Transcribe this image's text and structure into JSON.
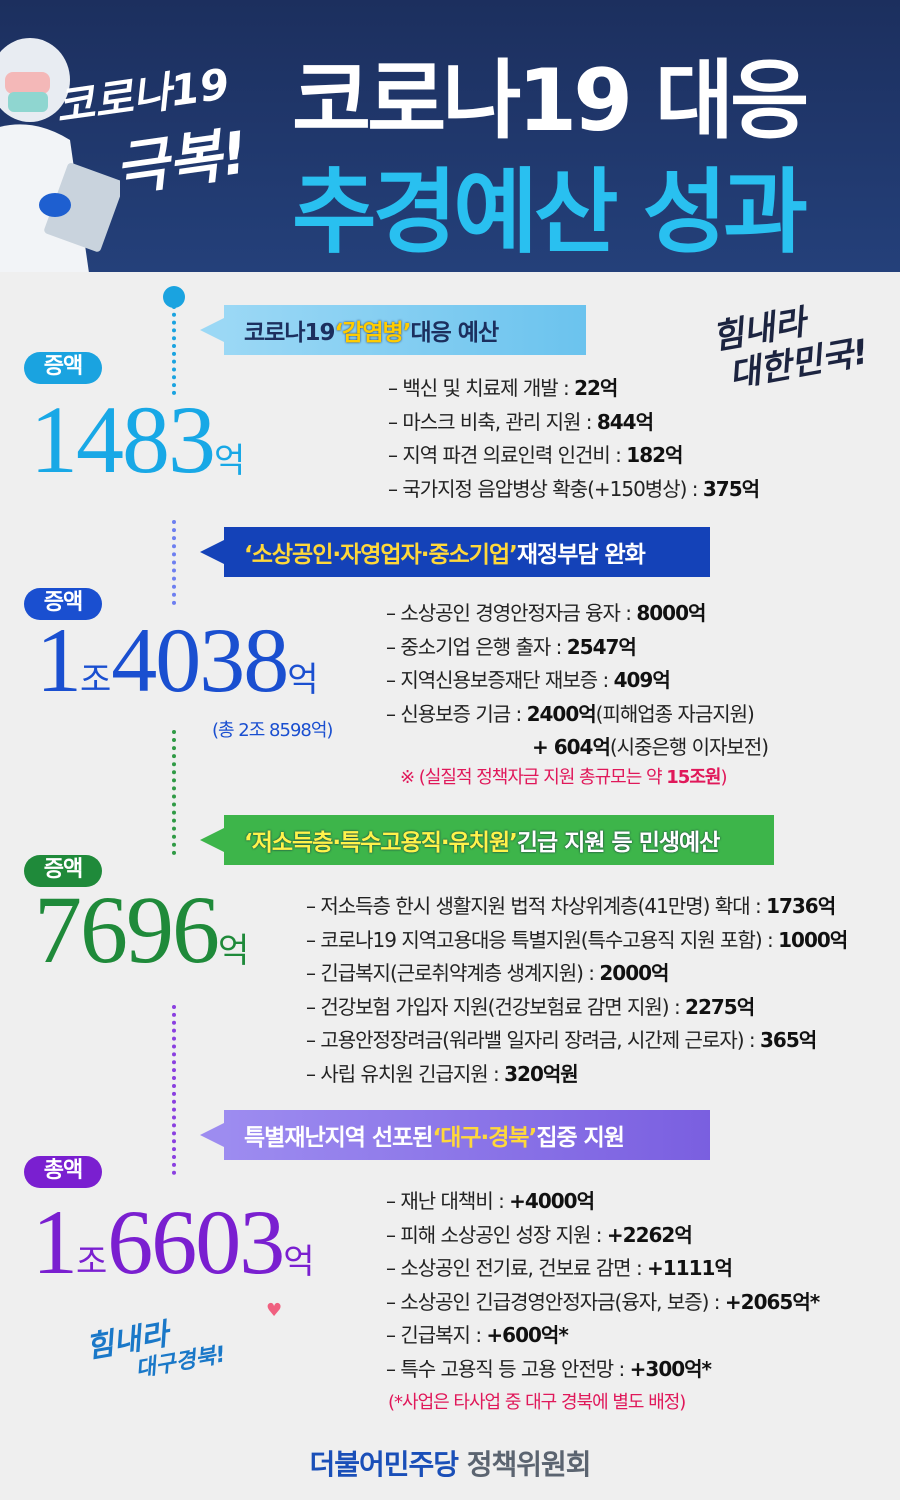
{
  "header": {
    "slogan_line1": "코로나19",
    "slogan_line2": "극복!",
    "title_line1": "코로나19 대응",
    "title_line2": "추경예산 성과"
  },
  "colors": {
    "header_bg": "#1c2f5e",
    "title_accent": "#29c0f0",
    "section1": "#1aa3e0",
    "section2": "#1a4fd0",
    "section3": "#1f8a3a",
    "section4": "#7a1fd0",
    "highlight": "#ffd83a",
    "note": "#e0185a"
  },
  "cheer1": {
    "line1": "힘내라",
    "line2": "대한민국!"
  },
  "cheer2": {
    "line1": "힘내라",
    "line2": "대구경북!"
  },
  "sections": [
    {
      "banner_pre": "코로나19 ",
      "banner_hl": "‘감염병’",
      "banner_post": " 대응 예산",
      "badge": "증액",
      "amount": "1483",
      "unit": "억",
      "items": [
        {
          "label": "– 백신 및 치료제 개발 : ",
          "value": "22억"
        },
        {
          "label": "– 마스크 비축, 관리 지원 : ",
          "value": "844억"
        },
        {
          "label": "– 지역 파견 의료인력 인건비 : ",
          "value": "182억"
        },
        {
          "label": "– 국가지정 음압병상 확충(+150병상) : ",
          "value": "375억"
        }
      ]
    },
    {
      "banner_pre": "",
      "banner_hl": "‘소상공인·자영업자·중소기업’",
      "banner_post": " 재정부담 완화",
      "badge": "증액",
      "amount_jo": "1",
      "jo": "조",
      "amount": "4038",
      "unit": "억",
      "total": "(총 2조 8598억)",
      "items": [
        {
          "label": "– 소상공인 경영안정자금 융자 : ",
          "value": "8000억"
        },
        {
          "label": "– 중소기업 은행 출자 : ",
          "value": "2547억"
        },
        {
          "label": "– 지역신용보증재단 재보증 : ",
          "value": "409억"
        },
        {
          "label": "– 신용보증 기금 : ",
          "value": "2400억",
          "extra": "(피해업종 자금지원)"
        },
        {
          "label": "",
          "value": "+ 604억",
          "extra": "(시중은행 이자보전)"
        }
      ],
      "note_pre": "※ (실질적 정책자금 지원 총규모는 약 ",
      "note_bold": "15조원",
      "note_post": ")"
    },
    {
      "banner_pre": "",
      "banner_hl": "‘저소득층·특수고용직·유치원’",
      "banner_post": " 긴급 지원 등 민생예산",
      "badge": "증액",
      "amount": "7696",
      "unit": "억",
      "items": [
        {
          "label": "– 저소득층 한시 생활지원 법적 차상위계층(41만명) 확대 : ",
          "value": "1736억"
        },
        {
          "label": "– 코로나19 지역고용대응 특별지원(특수고용직 지원 포함) : ",
          "value": "1000억"
        },
        {
          "label": "– 긴급복지(근로취약계층 생계지원) : ",
          "value": "2000억"
        },
        {
          "label": "– 건강보험 가입자 지원(건강보험료 감면 지원) : ",
          "value": "2275억"
        },
        {
          "label": "– 고용안정장려금(워라밸 일자리 장려금, 시간제 근로자) : ",
          "value": "365억"
        },
        {
          "label": "– 사립 유치원 긴급지원 : ",
          "value": "320억원"
        }
      ]
    },
    {
      "banner_pre": "특별재난지역 선포된 ",
      "banner_hl": "‘대구·경북’",
      "banner_post": " 집중 지원",
      "badge": "총액",
      "amount_jo": "1",
      "jo": "조",
      "amount": "6603",
      "unit": "억",
      "items": [
        {
          "label": "– 재난 대책비 : ",
          "value": "+4000억"
        },
        {
          "label": "– 피해 소상공인 성장 지원 : ",
          "value": "+2262억"
        },
        {
          "label": "– 소상공인 전기료, 건보료 감면 : ",
          "value": "+1111억"
        },
        {
          "label": "– 소상공인 긴급경영안정자금(융자, 보증) : ",
          "value": "+2065억*"
        },
        {
          "label": "– 긴급복지 : ",
          "value": "+600억*"
        },
        {
          "label": "– 특수 고용직 등 고용 안전망 : ",
          "value": "+300억*"
        }
      ],
      "note": "(*사업은 타사업 중 대구 경북에 별도 배정)"
    }
  ],
  "footer": {
    "party": "더불어민주당",
    "committee": " 정책위원회"
  }
}
